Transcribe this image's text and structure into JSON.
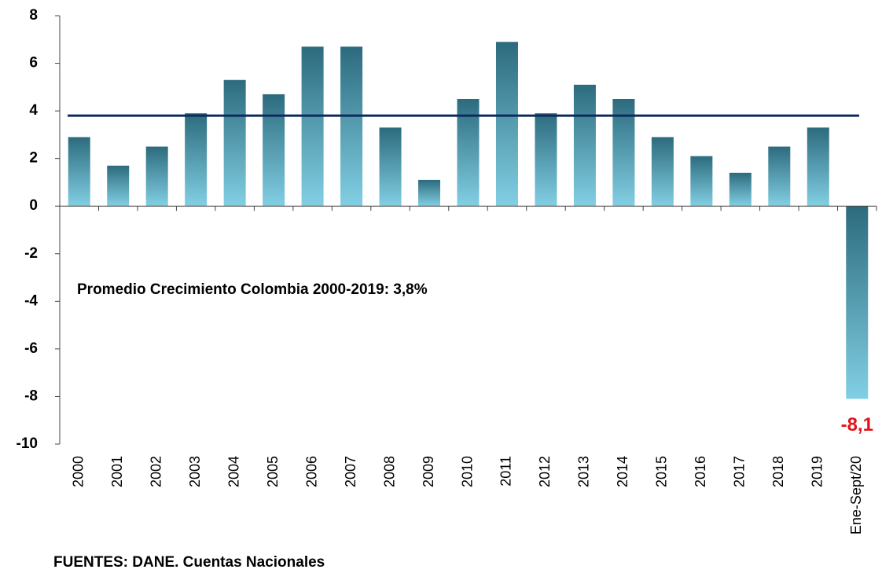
{
  "chart_data": {
    "type": "bar",
    "categories": [
      "2000",
      "2001",
      "2002",
      "2003",
      "2004",
      "2005",
      "2006",
      "2007",
      "2008",
      "2009",
      "2010",
      "2011",
      "2012",
      "2013",
      "2014",
      "2015",
      "2016",
      "2017",
      "2018",
      "2019",
      "Ene-Sept/20"
    ],
    "values": [
      2.9,
      1.7,
      2.5,
      3.9,
      5.3,
      4.7,
      6.7,
      6.7,
      3.3,
      1.1,
      4.5,
      6.9,
      3.9,
      5.1,
      4.5,
      2.9,
      2.1,
      1.4,
      2.5,
      3.3,
      -8.1
    ],
    "value_labels": [
      null,
      null,
      null,
      null,
      null,
      null,
      null,
      null,
      null,
      null,
      null,
      null,
      null,
      null,
      null,
      null,
      null,
      null,
      null,
      null,
      "-8,1"
    ],
    "gradient": [
      "#2c6b7d",
      "#82cfe4"
    ],
    "average": 3.8,
    "average_color": "#0d2a5c",
    "annotation": "Promedio Crecimiento Colombia 2000-2019:  3,8%",
    "source": "FUENTES: DANE. Cuentas Nacionales",
    "ylim": [
      -10,
      8
    ],
    "yticks": [
      -10,
      -8,
      -6,
      -4,
      -2,
      0,
      2,
      4,
      6,
      8
    ],
    "grid": false
  }
}
